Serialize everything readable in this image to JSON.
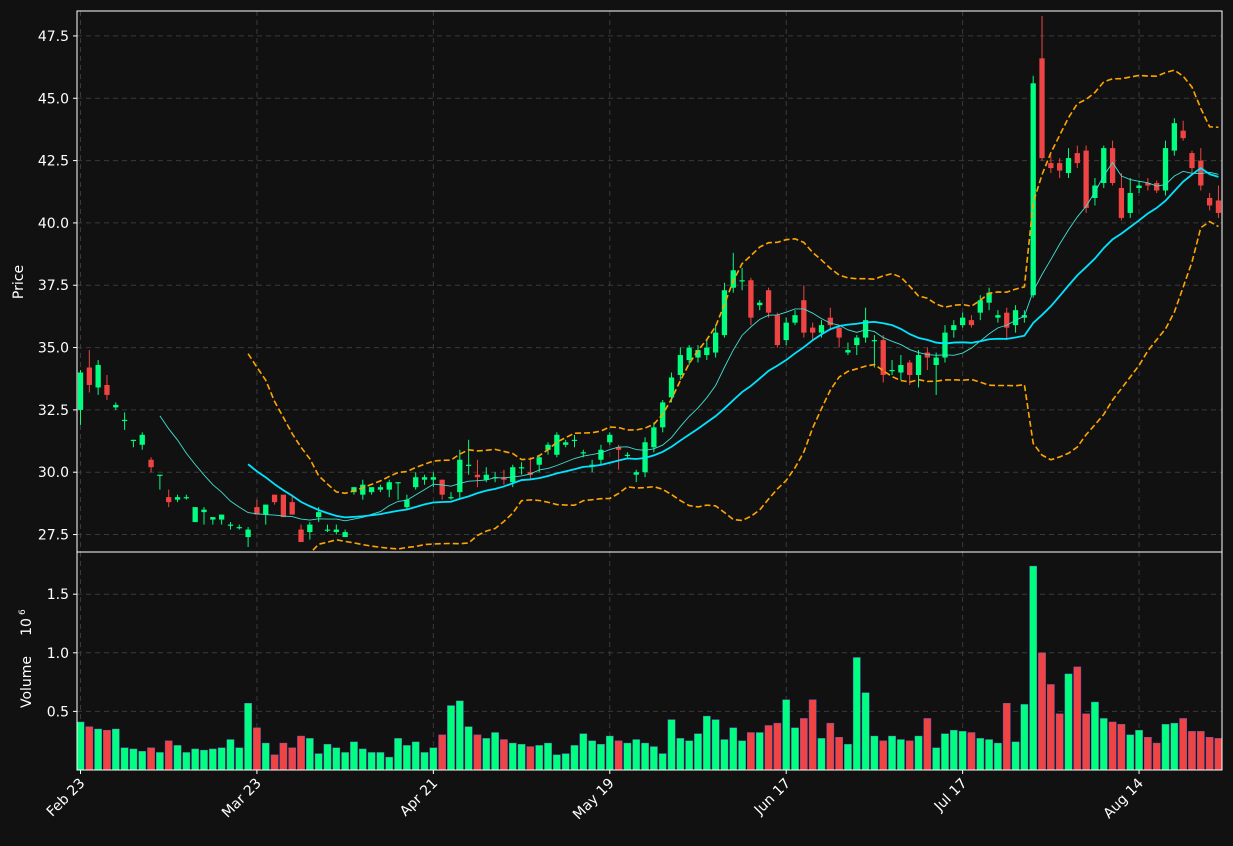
{
  "chart_data": {
    "type": "candlestick",
    "price_panel": {
      "ylabel": "Price",
      "ylim": [
        26.8,
        48.5
      ],
      "yticks": [
        27.5,
        30.0,
        32.5,
        35.0,
        37.5,
        40.0,
        42.5,
        45.0,
        47.5
      ],
      "ytick_labels": [
        "27.5",
        "30.0",
        "32.5",
        "35.0",
        "37.5",
        "40.0",
        "42.5",
        "45.0",
        "47.5"
      ],
      "grid": true
    },
    "volume_panel": {
      "ylabel": "Volume",
      "ylabel_exponent": "10^6",
      "yticks": [
        0.5,
        1.0,
        1.5
      ],
      "ytick_labels": [
        "0.5",
        "1.0",
        "1.5"
      ],
      "grid": true
    },
    "x_axis": {
      "tick_indices": [
        0,
        20,
        40,
        60,
        80,
        100,
        120
      ],
      "tick_labels": [
        "Feb 23",
        "Mar 23",
        "Apr 21",
        "May 19",
        "Jun 17",
        "Jul 17",
        "Aug 14"
      ]
    },
    "colors": {
      "up": "#00ff80",
      "down": "#ef4444",
      "bollinger": "#ffa500",
      "ma_short": "#40e0d0",
      "ma_long": "#00e5ff",
      "grid": "#3a3a3a",
      "axes": "#ffffff"
    },
    "indicators": {
      "ma_short_window": 10,
      "ma_long_window": 20,
      "bollinger_window": 20
    },
    "candles": [
      [
        32.5,
        34.0,
        31.9,
        34.1,
        0.41
      ],
      [
        34.2,
        33.5,
        33.2,
        34.9,
        0.37
      ],
      [
        33.4,
        34.3,
        33.1,
        34.5,
        0.35
      ],
      [
        33.5,
        33.1,
        32.9,
        33.9,
        0.34
      ],
      [
        32.6,
        32.7,
        32.5,
        32.8,
        0.35
      ],
      [
        32.1,
        32.1,
        31.7,
        32.4,
        0.19
      ],
      [
        31.3,
        31.3,
        31.0,
        31.3,
        0.18
      ],
      [
        31.1,
        31.5,
        30.9,
        31.6,
        0.16
      ],
      [
        30.5,
        30.2,
        30.0,
        30.6,
        0.19
      ],
      [
        29.9,
        29.9,
        29.3,
        29.9,
        0.15
      ],
      [
        29.0,
        28.8,
        28.6,
        29.3,
        0.25
      ],
      [
        28.9,
        29.0,
        28.8,
        29.1,
        0.21
      ],
      [
        29.0,
        29.0,
        28.9,
        29.1,
        0.15
      ],
      [
        28.0,
        28.6,
        28.0,
        28.6,
        0.18
      ],
      [
        28.4,
        28.5,
        27.9,
        28.6,
        0.17
      ],
      [
        28.1,
        28.2,
        27.9,
        28.2,
        0.18
      ],
      [
        28.1,
        28.3,
        27.9,
        28.3,
        0.19
      ],
      [
        27.9,
        27.9,
        27.7,
        28.0,
        0.26
      ],
      [
        27.8,
        27.8,
        27.7,
        27.9,
        0.19
      ],
      [
        27.4,
        27.7,
        27.0,
        27.8,
        0.57
      ],
      [
        28.6,
        28.3,
        28.3,
        28.9,
        0.36
      ],
      [
        28.3,
        28.7,
        27.9,
        28.7,
        0.23
      ],
      [
        29.1,
        28.8,
        28.7,
        29.1,
        0.13
      ],
      [
        29.1,
        28.2,
        28.2,
        29.0,
        0.23
      ],
      [
        28.8,
        28.3,
        28.3,
        29.1,
        0.19
      ],
      [
        27.7,
        27.2,
        27.2,
        27.9,
        0.29
      ],
      [
        27.6,
        27.9,
        27.3,
        28.0,
        0.27
      ],
      [
        28.2,
        28.4,
        28.0,
        28.6,
        0.14
      ],
      [
        27.7,
        27.7,
        27.6,
        27.9,
        0.22
      ],
      [
        27.6,
        27.7,
        27.5,
        27.9,
        0.19
      ],
      [
        27.4,
        27.6,
        27.4,
        27.7,
        0.15
      ],
      [
        29.2,
        29.4,
        29.1,
        29.4,
        0.24
      ],
      [
        29.1,
        29.5,
        28.9,
        29.7,
        0.18
      ],
      [
        29.2,
        29.4,
        29.1,
        29.4,
        0.15
      ],
      [
        29.3,
        29.4,
        29.2,
        29.5,
        0.15
      ],
      [
        29.3,
        29.6,
        29.0,
        29.7,
        0.11
      ],
      [
        29.6,
        29.6,
        28.9,
        29.6,
        0.27
      ],
      [
        28.6,
        28.9,
        28.5,
        29.1,
        0.21
      ],
      [
        29.4,
        29.8,
        29.3,
        30.0,
        0.24
      ],
      [
        29.7,
        29.8,
        29.5,
        29.9,
        0.15
      ],
      [
        29.7,
        29.8,
        29.4,
        30.0,
        0.19
      ],
      [
        29.7,
        29.1,
        28.9,
        29.7,
        0.3
      ],
      [
        29.0,
        29.0,
        28.9,
        29.2,
        0.55
      ],
      [
        29.2,
        30.5,
        28.9,
        30.9,
        0.59
      ],
      [
        30.3,
        30.3,
        29.9,
        31.3,
        0.37
      ],
      [
        29.9,
        29.8,
        29.4,
        30.5,
        0.3
      ],
      [
        29.7,
        29.9,
        29.6,
        30.2,
        0.27
      ],
      [
        29.8,
        29.8,
        29.6,
        30.0,
        0.32
      ],
      [
        29.8,
        29.7,
        29.5,
        30.1,
        0.26
      ],
      [
        29.6,
        30.2,
        29.4,
        30.3,
        0.23
      ],
      [
        30.2,
        30.2,
        29.9,
        30.4,
        0.22
      ],
      [
        30.0,
        29.9,
        29.7,
        30.6,
        0.2
      ],
      [
        30.3,
        30.6,
        30.0,
        30.7,
        0.21
      ],
      [
        30.9,
        31.1,
        30.7,
        31.2,
        0.23
      ],
      [
        30.7,
        31.5,
        30.6,
        31.6,
        0.13
      ],
      [
        31.1,
        31.2,
        31.0,
        31.3,
        0.14
      ],
      [
        31.3,
        31.3,
        31.0,
        31.5,
        0.21
      ],
      [
        30.8,
        30.8,
        30.6,
        30.9,
        0.31
      ],
      [
        30.3,
        30.3,
        30.0,
        30.5,
        0.25
      ],
      [
        30.5,
        30.9,
        30.3,
        31.1,
        0.22
      ],
      [
        31.2,
        31.5,
        31.1,
        31.6,
        0.29
      ],
      [
        31.0,
        30.9,
        30.1,
        31.1,
        0.25
      ],
      [
        30.7,
        30.7,
        30.6,
        30.8,
        0.23
      ],
      [
        29.9,
        30.0,
        29.6,
        30.1,
        0.26
      ],
      [
        30.0,
        31.2,
        29.8,
        31.4,
        0.23
      ],
      [
        31.0,
        31.8,
        30.8,
        32.0,
        0.2
      ],
      [
        31.8,
        32.8,
        31.6,
        32.9,
        0.14
      ],
      [
        33.0,
        33.8,
        32.8,
        34.0,
        0.43
      ],
      [
        33.9,
        34.7,
        33.7,
        35.0,
        0.27
      ],
      [
        34.5,
        35.0,
        34.3,
        35.1,
        0.25
      ],
      [
        34.6,
        34.9,
        34.4,
        35.1,
        0.31
      ],
      [
        34.7,
        35.0,
        34.5,
        35.3,
        0.46
      ],
      [
        34.8,
        35.6,
        34.6,
        35.9,
        0.43
      ],
      [
        35.5,
        37.3,
        35.4,
        37.6,
        0.26
      ],
      [
        37.4,
        38.1,
        37.2,
        38.8,
        0.36
      ],
      [
        37.7,
        37.7,
        37.3,
        38.2,
        0.25
      ],
      [
        37.7,
        36.2,
        35.9,
        37.8,
        0.32
      ],
      [
        36.7,
        36.8,
        36.5,
        36.9,
        0.32
      ],
      [
        37.3,
        36.4,
        36.2,
        37.4,
        0.38
      ],
      [
        36.3,
        35.1,
        35.0,
        36.4,
        0.4
      ],
      [
        35.3,
        36.0,
        35.1,
        36.2,
        0.6
      ],
      [
        36.0,
        36.3,
        35.9,
        36.5,
        0.36
      ],
      [
        36.9,
        35.6,
        35.4,
        37.5,
        0.44
      ],
      [
        35.8,
        35.6,
        35.3,
        36.0,
        0.6
      ],
      [
        35.6,
        35.9,
        35.4,
        36.1,
        0.27
      ],
      [
        36.2,
        35.9,
        35.7,
        36.6,
        0.4
      ],
      [
        35.8,
        35.4,
        35.0,
        35.9,
        0.28
      ],
      [
        34.8,
        34.9,
        34.7,
        35.2,
        0.22
      ],
      [
        35.1,
        35.4,
        34.7,
        35.5,
        0.96
      ],
      [
        35.4,
        36.1,
        35.2,
        36.6,
        0.66
      ],
      [
        35.3,
        35.3,
        34.2,
        35.5,
        0.29
      ],
      [
        35.3,
        33.9,
        33.6,
        35.5,
        0.25
      ],
      [
        34.1,
        34.1,
        33.9,
        34.5,
        0.29
      ],
      [
        34.0,
        34.3,
        33.7,
        34.7,
        0.26
      ],
      [
        34.4,
        33.9,
        33.5,
        34.5,
        0.25
      ],
      [
        33.9,
        34.7,
        33.4,
        34.9,
        0.29
      ],
      [
        34.8,
        34.6,
        34.1,
        35.0,
        0.44
      ],
      [
        34.3,
        34.6,
        33.1,
        34.8,
        0.19
      ],
      [
        34.6,
        35.6,
        34.4,
        35.9,
        0.31
      ],
      [
        35.7,
        35.9,
        35.4,
        36.1,
        0.34
      ],
      [
        35.9,
        36.2,
        35.8,
        36.4,
        0.33
      ],
      [
        36.1,
        35.9,
        35.8,
        36.3,
        0.32
      ],
      [
        36.4,
        36.9,
        36.1,
        37.1,
        0.27
      ],
      [
        36.8,
        37.2,
        36.5,
        37.4,
        0.26
      ],
      [
        36.2,
        36.3,
        36.0,
        36.5,
        0.23
      ],
      [
        36.4,
        35.8,
        35.3,
        36.6,
        0.57
      ],
      [
        35.9,
        36.5,
        35.6,
        36.7,
        0.24
      ],
      [
        36.2,
        36.3,
        36.0,
        36.5,
        0.56
      ],
      [
        37.1,
        45.6,
        37.0,
        45.9,
        1.74
      ],
      [
        46.6,
        42.6,
        42.5,
        48.3,
        1.0
      ],
      [
        42.4,
        42.2,
        42.0,
        42.7,
        0.73
      ],
      [
        42.4,
        42.1,
        41.8,
        42.6,
        0.48
      ],
      [
        42.0,
        42.6,
        41.8,
        43.0,
        0.82
      ],
      [
        42.8,
        42.4,
        42.2,
        43.1,
        0.88
      ],
      [
        42.9,
        40.6,
        40.4,
        43.1,
        0.48
      ],
      [
        41.0,
        41.5,
        40.7,
        41.8,
        0.58
      ],
      [
        41.6,
        43.0,
        41.4,
        43.1,
        0.44
      ],
      [
        43.0,
        41.6,
        41.5,
        43.3,
        0.41
      ],
      [
        41.4,
        40.2,
        40.1,
        42.0,
        0.39
      ],
      [
        40.4,
        41.2,
        40.2,
        41.8,
        0.3
      ],
      [
        41.4,
        41.5,
        41.2,
        41.7,
        0.34
      ],
      [
        41.6,
        41.5,
        41.3,
        41.8,
        0.28
      ],
      [
        41.6,
        41.3,
        41.2,
        41.7,
        0.23
      ],
      [
        41.3,
        43.0,
        41.1,
        43.3,
        0.39
      ],
      [
        42.9,
        44.0,
        42.7,
        44.2,
        0.4
      ],
      [
        43.7,
        43.4,
        43.3,
        44.1,
        0.44
      ],
      [
        42.8,
        42.2,
        42.0,
        42.9,
        0.33
      ],
      [
        42.5,
        41.5,
        41.3,
        43.0,
        0.33
      ],
      [
        41.0,
        40.7,
        40.5,
        41.2,
        0.28
      ],
      [
        40.9,
        40.4,
        40.2,
        41.5,
        0.27
      ]
    ]
  }
}
